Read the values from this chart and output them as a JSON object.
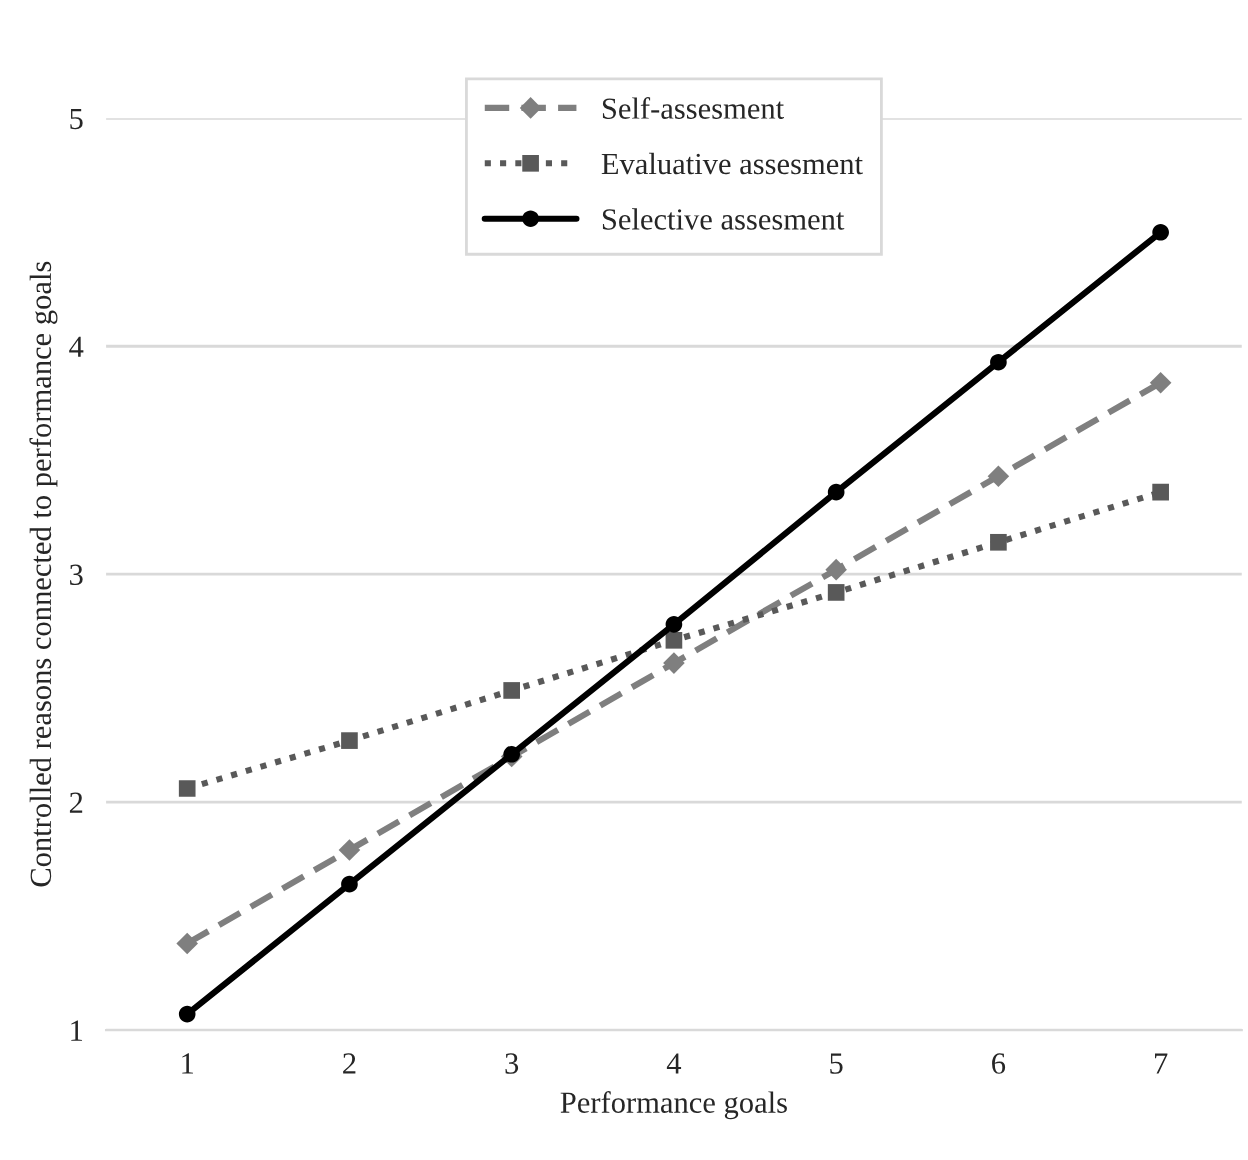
{
  "chart_data": {
    "type": "line",
    "xlabel": "Performance goals",
    "ylabel": "Controlled reasons connected to performance goals",
    "categories": [
      "1",
      "2",
      "3",
      "4",
      "5",
      "6",
      "7"
    ],
    "series": [
      {
        "name": "Self-assesment",
        "color": "#7f7f7f",
        "marker": "diamond",
        "line_style": "dashed",
        "values": [
          1.38,
          1.79,
          2.2,
          2.61,
          3.02,
          3.43,
          3.84
        ]
      },
      {
        "name": "Evaluative assesment",
        "color": "#595959",
        "marker": "square",
        "line_style": "dotted",
        "values": [
          2.06,
          2.27,
          2.49,
          2.71,
          2.92,
          3.14,
          3.36
        ]
      },
      {
        "name": "Selective assesment",
        "color": "#000000",
        "marker": "circle",
        "line_style": "solid",
        "values": [
          1.07,
          1.64,
          2.21,
          2.78,
          3.36,
          3.93,
          4.5
        ]
      }
    ],
    "ylim": [
      1,
      5
    ],
    "yticks": [
      1,
      2,
      3,
      4,
      5
    ],
    "grid": "y",
    "legend": "top"
  }
}
